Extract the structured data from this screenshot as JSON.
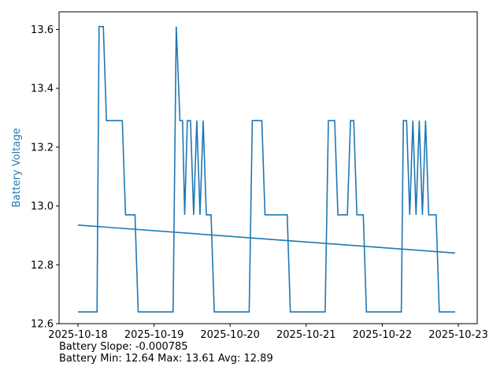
{
  "chart_data": {
    "type": "line",
    "title": "",
    "xlabel": "",
    "ylabel": "Battery Voltage",
    "ylabel_color": "#1f77b4",
    "line_color": "#1f77b4",
    "grid": false,
    "xlim": [
      "2025-10-18",
      "2025-10-23"
    ],
    "ylim": [
      12.6,
      13.66
    ],
    "x_ticks": [
      "2025-10-18",
      "2025-10-19",
      "2025-10-20",
      "2025-10-21",
      "2025-10-22",
      "2025-10-23"
    ],
    "y_ticks": [
      12.6,
      12.8,
      13.0,
      13.2,
      13.4,
      13.6
    ],
    "series": [
      {
        "kind": "voltage",
        "points": [
          [
            "2025-10-18 00:00",
            12.64
          ],
          [
            "2025-10-18 06:00",
            12.64
          ],
          [
            "2025-10-18 06:40",
            13.61
          ],
          [
            "2025-10-18 08:00",
            13.61
          ],
          [
            "2025-10-18 09:00",
            13.29
          ],
          [
            "2025-10-18 14:00",
            13.29
          ],
          [
            "2025-10-18 15:00",
            12.97
          ],
          [
            "2025-10-18 18:00",
            12.97
          ],
          [
            "2025-10-18 19:00",
            12.64
          ],
          [
            "2025-10-19 06:00",
            12.64
          ],
          [
            "2025-10-19 07:00",
            13.61
          ],
          [
            "2025-10-19 08:10",
            13.29
          ],
          [
            "2025-10-19 09:00",
            13.29
          ],
          [
            "2025-10-19 09:40",
            12.97
          ],
          [
            "2025-10-19 10:30",
            13.29
          ],
          [
            "2025-10-19 11:30",
            13.29
          ],
          [
            "2025-10-19 12:30",
            12.97
          ],
          [
            "2025-10-19 13:30",
            13.29
          ],
          [
            "2025-10-19 14:30",
            12.97
          ],
          [
            "2025-10-19 15:30",
            13.29
          ],
          [
            "2025-10-19 16:30",
            12.97
          ],
          [
            "2025-10-19 18:00",
            12.97
          ],
          [
            "2025-10-19 19:00",
            12.64
          ],
          [
            "2025-10-20 06:00",
            12.64
          ],
          [
            "2025-10-20 07:00",
            13.29
          ],
          [
            "2025-10-20 10:00",
            13.29
          ],
          [
            "2025-10-20 11:00",
            12.97
          ],
          [
            "2025-10-20 18:00",
            12.97
          ],
          [
            "2025-10-20 19:00",
            12.64
          ],
          [
            "2025-10-21 06:00",
            12.64
          ],
          [
            "2025-10-21 07:00",
            13.29
          ],
          [
            "2025-10-21 09:00",
            13.29
          ],
          [
            "2025-10-21 10:00",
            12.97
          ],
          [
            "2025-10-21 13:00",
            12.97
          ],
          [
            "2025-10-21 14:00",
            13.29
          ],
          [
            "2025-10-21 15:00",
            13.29
          ],
          [
            "2025-10-21 16:00",
            12.97
          ],
          [
            "2025-10-21 18:00",
            12.97
          ],
          [
            "2025-10-21 19:00",
            12.64
          ],
          [
            "2025-10-22 06:00",
            12.64
          ],
          [
            "2025-10-22 06:40",
            13.29
          ],
          [
            "2025-10-22 07:40",
            13.29
          ],
          [
            "2025-10-22 08:40",
            12.97
          ],
          [
            "2025-10-22 09:40",
            13.29
          ],
          [
            "2025-10-22 10:40",
            12.97
          ],
          [
            "2025-10-22 11:40",
            13.29
          ],
          [
            "2025-10-22 12:40",
            12.97
          ],
          [
            "2025-10-22 13:40",
            13.29
          ],
          [
            "2025-10-22 14:40",
            12.97
          ],
          [
            "2025-10-22 17:00",
            12.97
          ],
          [
            "2025-10-22 18:00",
            12.64
          ],
          [
            "2025-10-22 23:00",
            12.64
          ]
        ]
      },
      {
        "kind": "trend",
        "points": [
          [
            "2025-10-18 00:00",
            12.935
          ],
          [
            "2025-10-22 23:00",
            12.84
          ]
        ]
      }
    ]
  },
  "stats": {
    "slope_line": "Battery Slope: -0.000785",
    "minmax_line": "Battery Min: 12.64 Max: 13.61 Avg: 12.89"
  }
}
